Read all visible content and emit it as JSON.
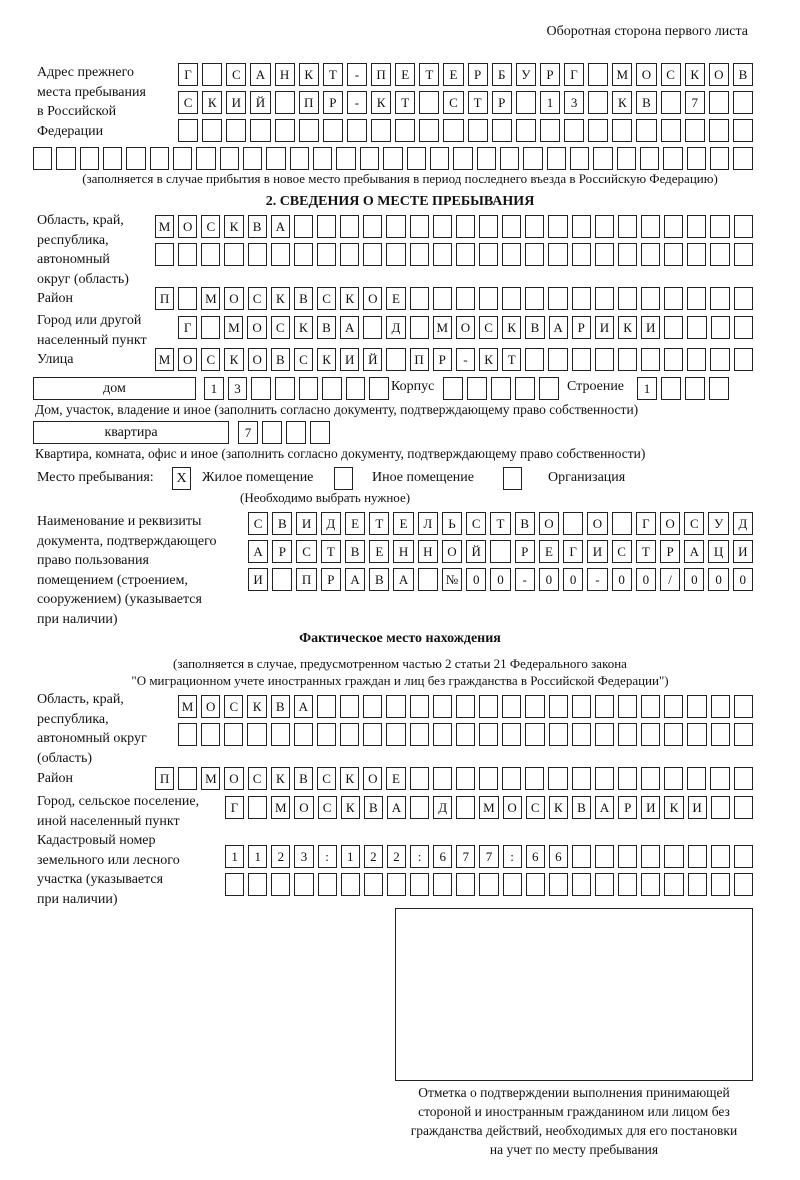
{
  "page_header": "Оборотная сторона первого листа",
  "previous_address": {
    "label": "Адрес прежнего\nместа пребывания\nв Российской\nФедерации",
    "rows": [
      "Г САНКТ-ПЕТЕРБУРГ МОСКОВ",
      "СКИЙ ПР-КТ СТР 13 КВ 7",
      "",
      ""
    ],
    "note": "(заполняется в случае прибытия в новое место пребывания в период последнего въезда в Российскую Федерацию)"
  },
  "section2": {
    "heading": "2. СВЕДЕНИЯ О МЕСТЕ ПРЕБЫВАНИЯ",
    "region_label": "Область, край,\nреспублика,\nавтономный\nокруг (область)",
    "region_rows": [
      "МОСКВА",
      ""
    ],
    "district_label": "Район",
    "district": "П МОСКВСКОЕ",
    "city_label": "Город или другой\nнаселенный пункт",
    "city": "Г МОСКВА Д МОСКВАРИКИ",
    "street_label": "Улица",
    "street": "МОСКОВСКИЙ ПР-КТ",
    "house_type": "дом",
    "house_number": "13",
    "korpus_label": "Корпус",
    "korpus": "",
    "building_label": "Строение",
    "building": "1",
    "house_note": "Дом, участок, владение и иное (заполнить согласно документу, подтверждающему право собственности)",
    "apartment_type": "квартира",
    "apartment_number": "7",
    "apartment_note": "Квартира, комната, офис и иное (заполнить согласно документу, подтверждающему право собственности)",
    "stay_place_label": "Место пребывания:",
    "stay_options": [
      {
        "label": "Жилое помещение",
        "mark": "X"
      },
      {
        "label": "Иное помещение",
        "mark": ""
      },
      {
        "label": "Организация",
        "mark": ""
      }
    ],
    "stay_note": "(Необходимо выбрать нужное)",
    "document_label": "Наименование и реквизиты\nдокумента, подтверждающего\nправо пользования\nпомещением (строением,\nсооружением) (указывается\nпри наличии)",
    "document_rows": [
      "СВИДЕТЕЛЬСТВО О ГОСУД",
      "АРСТВЕННОЙ РЕГИСТРАЦИ",
      "И ПРАВА №00-00-00/000"
    ]
  },
  "actual_location": {
    "heading": "Фактическое место нахождения",
    "note_line1": "(заполняется в случае, предусмотренном частью 2 статьи 21 Федерального закона",
    "note_line2": "\"О миграционном учете иностранных граждан и лиц без гражданства в Российской Федерации\")",
    "region_label": "Область, край,\nреспублика,\nавтономный округ\n(область)",
    "region_rows": [
      "МОСКВА",
      ""
    ],
    "district_label": "Район",
    "district": "П МОСКВСКОЕ",
    "city_label": "Город, сельское поселение,\nиной населенный пункт",
    "city": "Г МОСКВА Д МОСКВАРИКИ",
    "cadastral_label": "Кадастровый номер\nземельного или лесного\nучастка (указывается\nпри наличии)",
    "cadastral_rows": [
      "1123:122:677:66",
      ""
    ]
  },
  "confirmation_box": {
    "caption": "Отметка о подтверждении выполнения принимающей\nстороной и иностранным гражданином или лицом без\nгражданства действий, необходимых для его постановки\nна учет по месту пребывания"
  }
}
